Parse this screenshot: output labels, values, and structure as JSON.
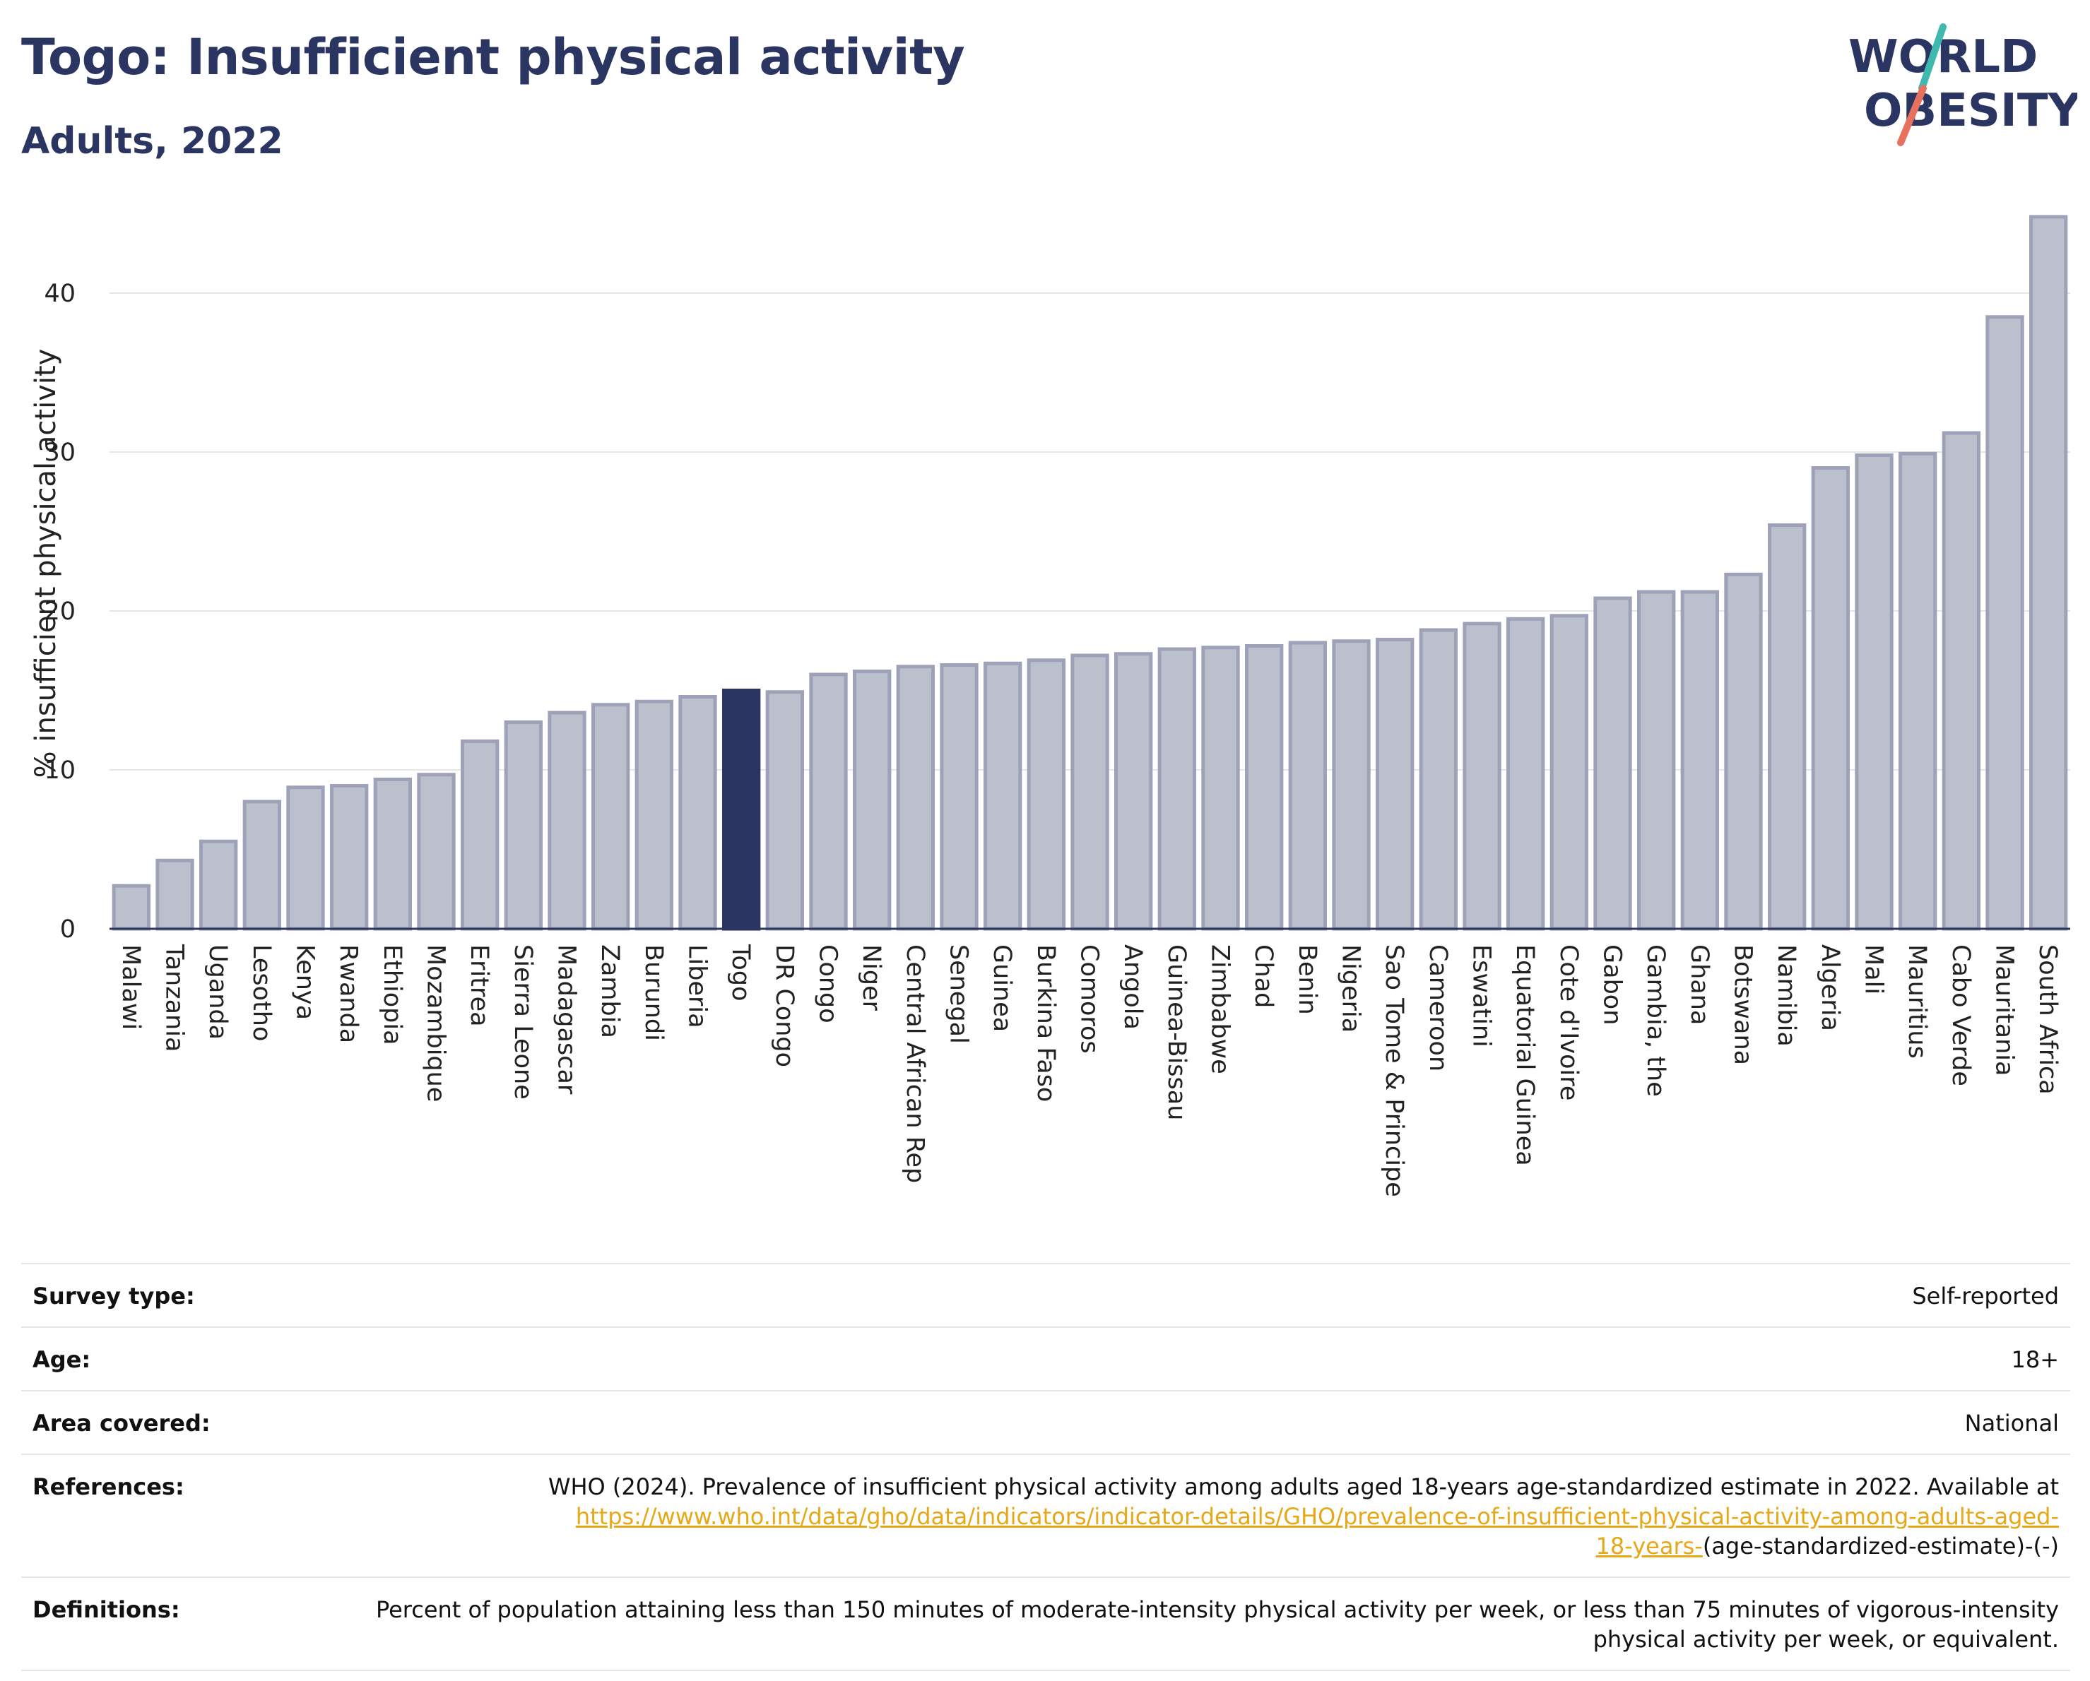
{
  "header": {
    "title": "Togo: Insufficient physical activity",
    "subtitle": "Adults, 2022"
  },
  "logo": {
    "line1": "WORLD",
    "line2": "OBESITY",
    "colors": {
      "text": "#2b3562",
      "slash_teal": "#3fb8b0",
      "slash_coral": "#e8705f"
    }
  },
  "chart_data": {
    "type": "bar",
    "ylabel": "% insufficient physical activity",
    "ylim": [
      0,
      46
    ],
    "yticks": [
      0,
      10,
      20,
      30,
      40
    ],
    "grid": true,
    "highlight": "Togo",
    "colors": {
      "bar": "#bcc0cd",
      "bar_edge": "#9da2b8",
      "highlight": "#2b3562",
      "grid": "#e6e6e6",
      "axis": "#2b3562"
    },
    "categories": [
      "Malawi",
      "Tanzania",
      "Uganda",
      "Lesotho",
      "Kenya",
      "Rwanda",
      "Ethiopia",
      "Mozambique",
      "Eritrea",
      "Sierra Leone",
      "Madagascar",
      "Zambia",
      "Burundi",
      "Liberia",
      "Togo",
      "DR Congo",
      "Congo",
      "Niger",
      "Central African Rep",
      "Senegal",
      "Guinea",
      "Burkina Faso",
      "Comoros",
      "Angola",
      "Guinea-Bissau",
      "Zimbabwe",
      "Chad",
      "Benin",
      "Nigeria",
      "Sao Tome & Principe",
      "Cameroon",
      "Eswatini",
      "Equatorial Guinea",
      "Cote d'Ivoire",
      "Gabon",
      "Gambia, the",
      "Ghana",
      "Botswana",
      "Namibia",
      "Algeria",
      "Mali",
      "Mauritius",
      "Cabo Verde",
      "Mauritania",
      "South Africa"
    ],
    "values": [
      2.7,
      4.3,
      5.5,
      8.0,
      8.9,
      9.0,
      9.4,
      9.7,
      11.8,
      13.0,
      13.6,
      14.1,
      14.3,
      14.6,
      15.0,
      14.9,
      16.0,
      16.2,
      16.5,
      16.6,
      16.7,
      16.9,
      17.2,
      17.3,
      17.6,
      17.7,
      17.8,
      18.0,
      18.1,
      18.2,
      18.8,
      19.2,
      19.5,
      19.7,
      20.8,
      21.2,
      21.2,
      22.3,
      25.4,
      29.0,
      29.8,
      29.9,
      31.2,
      38.5,
      44.8
    ]
  },
  "meta": {
    "survey_type_label": "Survey type:",
    "survey_type_value": "Self-reported",
    "age_label": "Age:",
    "age_value": "18+",
    "area_label": "Area covered:",
    "area_value": "National",
    "references_label": "References:",
    "references_text": "WHO (2024). Prevalence of insufficient physical activity among adults aged 18-years age-standardized estimate in 2022. Available at",
    "references_link_line1": "https://www.who.int/data/gho/data/indicators/indicator-details/GHO/prevalence-of-insufficient-physical-activity-among-adults-aged-",
    "references_link_line2": "18-years-",
    "references_suffix": "(age-standardized-estimate)-(-)",
    "definitions_label": "Definitions:",
    "definitions_text": "Percent of population attaining less than 150 minutes of moderate-intensity physical activity per week, or less than 75 minutes of vigorous-intensity physical activity per week, or equivalent."
  }
}
